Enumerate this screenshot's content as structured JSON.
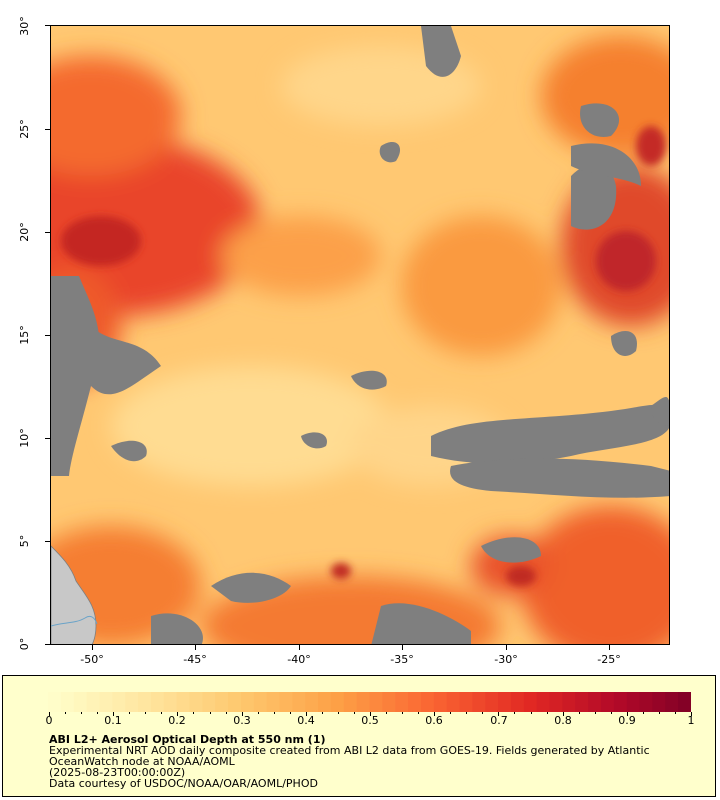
{
  "map": {
    "lat_labels": [
      "0°",
      "5°",
      "10°",
      "15°",
      "20°",
      "25°",
      "30°"
    ],
    "lon_labels": [
      "-50°",
      "-45°",
      "-40°",
      "-35°",
      "-30°",
      "-25°"
    ],
    "colors": {
      "no_data": "#7f7f7f",
      "land": "#c8c8c8",
      "river": "#6aa3c8"
    }
  },
  "legend": {
    "tick_labels": [
      "0",
      "0.1",
      "0.2",
      "0.3",
      "0.4",
      "0.5",
      "0.6",
      "0.7",
      "0.8",
      "0.9",
      "1"
    ],
    "title": "ABI L2+ Aerosol Optical Depth at 550 nm (1)",
    "line1": "Experimental NRT AOD daily composite created from ABI L2 data from GOES-19. Fields generated by Atlantic",
    "line2": "OceanWatch node at NOAA/AOML",
    "line3": "(2025-08-23T00:00:00Z)",
    "line4": "Data courtesy of USDOC/NOAA/OAR/AOML/PHOD"
  }
}
